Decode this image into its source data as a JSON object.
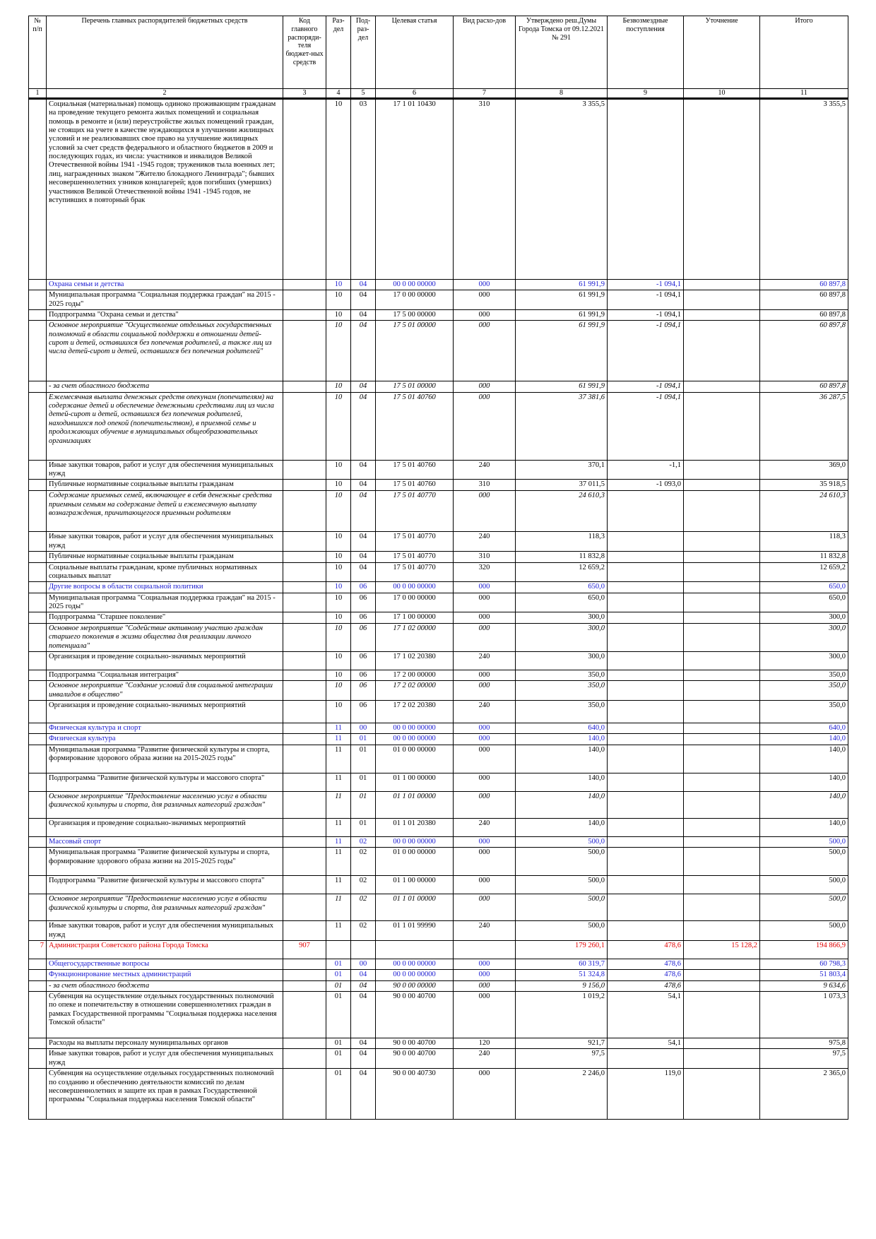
{
  "header": [
    "№ п/п",
    "Перечень главных распорядителей бюджетных средств",
    "Код главного распоряди-теля бюджет-ных средств",
    "Раз-дел",
    "Под-раз-дел",
    "Целевая статья",
    "Вид расхо-дов",
    "Утверждено реш.Думы Города Томска от 09.12.2021 № 291",
    "Безвозмездные поступления",
    "Уточнение",
    "Итого"
  ],
  "col_numbers": [
    "1",
    "2",
    "3",
    "4",
    "5",
    "6",
    "7",
    "8",
    "9",
    "10",
    "11"
  ],
  "rows": [
    {
      "style": "normal",
      "no": "",
      "name": "Социальная (материальная) помощь одиноко проживающим гражданам на проведение текущего ремонта жилых помещений и социальная помощь в ремонте и (или) переустройстве жилых помещений граждан, не стоящих на учете в качестве нуждающихся в улучшении жилищных условий и не реализовавших свое право на улучшение жилищных условий за счет средств федерального и областного бюджетов в 2009 и последующих годах, из числа: участников и инвалидов Великой Отечественной войны 1941 -1945 годов; тружеников тыла военных лет; лиц, награжденных знаком \"Жителю блокадного Ленинграда\"; бывших несовершеннолетних узников концлагерей; вдов погибших (умерших) участников Великой Отечественной войны 1941 -1945 годов, не вступивших в повторный брак",
      "code": "",
      "razdel": "10",
      "podrazdel": "03",
      "target": "17 1 01 10430",
      "vid": "310",
      "approved": "3 355,5",
      "free": "",
      "refine": "",
      "total": "3 355,5"
    },
    {
      "style": "blue",
      "no": "",
      "name": "Охрана семьи и детства",
      "code": "",
      "razdel": "10",
      "podrazdel": "04",
      "target": "00 0 00 00000",
      "vid": "000",
      "approved": "61 991,9",
      "free": "-1 094,1",
      "refine": "",
      "total": "60 897,8"
    },
    {
      "style": "bold",
      "no": "",
      "name": "Муниципальная программа \"Социальная поддержка граждан\" на 2015 - 2025 годы\"",
      "code": "",
      "razdel": "10",
      "podrazdel": "04",
      "target": "17 0 00 00000",
      "vid": "000",
      "approved": "61 991,9",
      "free": "-1 094,1",
      "refine": "",
      "total": "60 897,8"
    },
    {
      "style": "bold",
      "no": "",
      "name": "Подпрограмма \"Охрана семьи и детства\"",
      "code": "",
      "razdel": "10",
      "podrazdel": "04",
      "target": "17 5 00 00000",
      "vid": "000",
      "approved": "61 991,9",
      "free": "-1 094,1",
      "refine": "",
      "total": "60 897,8"
    },
    {
      "style": "bolditalic",
      "no": "",
      "name": "Основное мероприятие \"Осуществление отдельных государственных полномочий в области социальной поддержки в отношении детей-сирот и детей, оставшихся без попечения родителей, а также лиц из числа детей-сирот и детей, оставшихся без попечения родителей\"",
      "code": "",
      "razdel": "10",
      "podrazdel": "04",
      "target": "17 5 01 00000",
      "vid": "000",
      "approved": "61 991,9",
      "free": "-1 094,1",
      "refine": "",
      "total": "60 897,8"
    },
    {
      "style": "italic",
      "no": "",
      "name": "- за счет областного бюджета",
      "code": "",
      "razdel": "10",
      "podrazdel": "04",
      "target": "17 5 01 00000",
      "vid": "000",
      "approved": "61 991,9",
      "free": "-1 094,1",
      "refine": "",
      "total": "60 897,8"
    },
    {
      "style": "italic",
      "no": "",
      "name": "Ежемесячная выплата денежных средств опекунам (попечителям) на содержание детей и обеспечение денежными средствами лиц из числа детей-сирот и детей, оставшихся без попечения родителей, находившихся под опекой (попечительством), в приемной семье и продолжающих обучение в муниципальных общеобразовательных организациях",
      "code": "",
      "razdel": "10",
      "podrazdel": "04",
      "target": "17 5 01 40760",
      "vid": "000",
      "approved": "37 381,6",
      "free": "-1 094,1",
      "refine": "",
      "total": "36 287,5"
    },
    {
      "style": "normal",
      "no": "",
      "name": "Иные закупки товаров, работ и услуг для обеспечения муниципальных нужд",
      "code": "",
      "razdel": "10",
      "podrazdel": "04",
      "target": "17 5 01 40760",
      "vid": "240",
      "approved": "370,1",
      "free": "-1,1",
      "refine": "",
      "total": "369,0"
    },
    {
      "style": "normal",
      "no": "",
      "name": "Публичные нормативные социальные выплаты гражданам",
      "code": "",
      "razdel": "10",
      "podrazdel": "04",
      "target": "17 5 01 40760",
      "vid": "310",
      "approved": "37 011,5",
      "free": "-1 093,0",
      "refine": "",
      "total": "35 918,5"
    },
    {
      "style": "italic",
      "no": "",
      "name": "Содержание приемных семей, включающее в себя денежные средства приемным семьям на содержание детей и ежемесячную выплату вознаграждения, причитающегося приемным родителям",
      "code": "",
      "razdel": "10",
      "podrazdel": "04",
      "target": "17 5 01 40770",
      "vid": "000",
      "approved": "24 610,3",
      "free": "",
      "refine": "",
      "total": "24 610,3"
    },
    {
      "style": "normal",
      "no": "",
      "name": "Иные закупки товаров, работ и услуг для обеспечения муниципальных нужд",
      "code": "",
      "razdel": "10",
      "podrazdel": "04",
      "target": "17 5 01 40770",
      "vid": "240",
      "approved": "118,3",
      "free": "",
      "refine": "",
      "total": "118,3"
    },
    {
      "style": "normal",
      "no": "",
      "name": "Публичные нормативные социальные выплаты гражданам",
      "code": "",
      "razdel": "10",
      "podrazdel": "04",
      "target": "17 5 01 40770",
      "vid": "310",
      "approved": "11 832,8",
      "free": "",
      "refine": "",
      "total": "11 832,8"
    },
    {
      "style": "normal",
      "no": "",
      "name": "Социальные выплаты гражданам, кроме публичных нормативных социальных выплат",
      "code": "",
      "razdel": "10",
      "podrazdel": "04",
      "target": "17 5 01 40770",
      "vid": "320",
      "approved": "12 659,2",
      "free": "",
      "refine": "",
      "total": "12 659,2"
    },
    {
      "style": "blue",
      "no": "",
      "name": "Другие вопросы в области социальной политики",
      "code": "",
      "razdel": "10",
      "podrazdel": "06",
      "target": "00 0 00 00000",
      "vid": "000",
      "approved": "650,0",
      "free": "",
      "refine": "",
      "total": "650,0"
    },
    {
      "style": "bold",
      "no": "",
      "name": "Муниципальная программа \"Социальная поддержка граждан\" на 2015 - 2025 годы\"",
      "code": "",
      "razdel": "10",
      "podrazdel": "06",
      "target": "17 0 00 00000",
      "vid": "000",
      "approved": "650,0",
      "free": "",
      "refine": "",
      "total": "650,0"
    },
    {
      "style": "bold",
      "no": "",
      "name": "Подпрограмма \"Старшее поколение\"",
      "code": "",
      "razdel": "10",
      "podrazdel": "06",
      "target": "17 1 00 00000",
      "vid": "000",
      "approved": "300,0",
      "free": "",
      "refine": "",
      "total": "300,0"
    },
    {
      "style": "bolditalic",
      "no": "",
      "name": "Основное мероприятие \"Содействие активному участию граждан старшего поколения в жизни общества для реализации личного потенциала\"",
      "code": "",
      "razdel": "10",
      "podrazdel": "06",
      "target": "17 1 02 00000",
      "vid": "000",
      "approved": "300,0",
      "free": "",
      "refine": "",
      "total": "300,0"
    },
    {
      "style": "normal",
      "no": "",
      "name": "Организация и проведение социально-значимых мероприятий",
      "code": "",
      "razdel": "10",
      "podrazdel": "06",
      "target": "17 1 02 20380",
      "vid": "240",
      "approved": "300,0",
      "free": "",
      "refine": "",
      "total": "300,0"
    },
    {
      "style": "bold",
      "no": "",
      "name": "Подпрограмма \"Социальная интеграция\"",
      "code": "",
      "razdel": "10",
      "podrazdel": "06",
      "target": "17 2 00 00000",
      "vid": "000",
      "approved": "350,0",
      "free": "",
      "refine": "",
      "total": "350,0"
    },
    {
      "style": "bolditalic",
      "no": "",
      "name": "Основное мероприятие \"Создание условий для социальной интеграции инвалидов в общество\"",
      "code": "",
      "razdel": "10",
      "podrazdel": "06",
      "target": "17 2 02 00000",
      "vid": "000",
      "approved": "350,0",
      "free": "",
      "refine": "",
      "total": "350,0"
    },
    {
      "style": "normal",
      "no": "",
      "name": "Организация и проведение социально-значимых мероприятий",
      "code": "",
      "razdel": "10",
      "podrazdel": "06",
      "target": "17 2 02 20380",
      "vid": "240",
      "approved": "350,0",
      "free": "",
      "refine": "",
      "total": "350,0"
    },
    {
      "style": "bluebig",
      "no": "",
      "name": "Физическая культура и спорт",
      "code": "",
      "razdel": "11",
      "podrazdel": "00",
      "target": "00 0 00 00000",
      "vid": "000",
      "approved": "640,0",
      "free": "",
      "refine": "",
      "total": "640,0"
    },
    {
      "style": "blue",
      "no": "",
      "name": "Физическая культура",
      "code": "",
      "razdel": "11",
      "podrazdel": "01",
      "target": "00 0 00 00000",
      "vid": "000",
      "approved": "140,0",
      "free": "",
      "refine": "",
      "total": "140,0"
    },
    {
      "style": "bold",
      "no": "",
      "name": "Муниципальная программа \"Развитие физической культуры и спорта, формирование здорового образа жизни на 2015-2025 годы\"",
      "code": "",
      "razdel": "11",
      "podrazdel": "01",
      "target": "01 0 00 00000",
      "vid": "000",
      "approved": "140,0",
      "free": "",
      "refine": "",
      "total": "140,0"
    },
    {
      "style": "bold",
      "no": "",
      "name": "Подпрограмма \"Развитие физической культуры и массового спорта\"",
      "code": "",
      "razdel": "11",
      "podrazdel": "01",
      "target": "01 1 00 00000",
      "vid": "000",
      "approved": "140,0",
      "free": "",
      "refine": "",
      "total": "140,0"
    },
    {
      "style": "bolditalic",
      "no": "",
      "name": "Основное мероприятие \"Предоставление населению услуг в области физической культуры и спорта, для различных категорий граждан\"",
      "code": "",
      "razdel": "11",
      "podrazdel": "01",
      "target": "01 1 01 00000",
      "vid": "000",
      "approved": "140,0",
      "free": "",
      "refine": "",
      "total": "140,0"
    },
    {
      "style": "normal",
      "no": "",
      "name": "Организация и проведение социально-значимых мероприятий",
      "code": "",
      "razdel": "11",
      "podrazdel": "01",
      "target": "01 1 01 20380",
      "vid": "240",
      "approved": "140,0",
      "free": "",
      "refine": "",
      "total": "140,0"
    },
    {
      "style": "blue",
      "no": "",
      "name": "Массовый спорт",
      "code": "",
      "razdel": "11",
      "podrazdel": "02",
      "target": "00 0 00 00000",
      "vid": "000",
      "approved": "500,0",
      "free": "",
      "refine": "",
      "total": "500,0"
    },
    {
      "style": "bold",
      "no": "",
      "name": "Муниципальная программа \"Развитие физической культуры и спорта, формирование здорового образа жизни на 2015-2025 годы\"",
      "code": "",
      "razdel": "11",
      "podrazdel": "02",
      "target": "01 0 00 00000",
      "vid": "000",
      "approved": "500,0",
      "free": "",
      "refine": "",
      "total": "500,0"
    },
    {
      "style": "bold",
      "no": "",
      "name": "Подпрограмма \"Развитие физической культуры и массового спорта\"",
      "code": "",
      "razdel": "11",
      "podrazdel": "02",
      "target": "01 1 00 00000",
      "vid": "000",
      "approved": "500,0",
      "free": "",
      "refine": "",
      "total": "500,0"
    },
    {
      "style": "bolditalic",
      "no": "",
      "name": "Основное мероприятие \"Предоставление населению услуг в области физической культуры и спорта, для различных категорий граждан\"",
      "code": "",
      "razdel": "11",
      "podrazdel": "02",
      "target": "01 1 01 00000",
      "vid": "000",
      "approved": "500,0",
      "free": "",
      "refine": "",
      "total": "500,0"
    },
    {
      "style": "normal",
      "no": "",
      "name": "Иные закупки товаров, работ и услуг для обеспечения муниципальных нужд",
      "code": "",
      "razdel": "11",
      "podrazdel": "02",
      "target": "01 1 01 99990",
      "vid": "240",
      "approved": "500,0",
      "free": "",
      "refine": "",
      "total": "500,0"
    },
    {
      "style": "red",
      "no": "7",
      "name": "Администрация Советского района Города Томска",
      "code": "907",
      "razdel": "",
      "podrazdel": "",
      "target": "",
      "vid": "",
      "approved": "179 260,1",
      "free": "478,6",
      "refine": "15 128,2",
      "total": "194 866,9"
    },
    {
      "style": "bluebig",
      "no": "",
      "name": "Общегосударственные вопросы",
      "code": "",
      "razdel": "01",
      "podrazdel": "00",
      "target": "00 0 00 00000",
      "vid": "000",
      "approved": "60 319,7",
      "free": "478,6",
      "refine": "",
      "total": "60 798,3"
    },
    {
      "style": "blue",
      "no": "",
      "name": "Функционирование местных администраций",
      "code": "",
      "razdel": "01",
      "podrazdel": "04",
      "target": "00 0 00 00000",
      "vid": "000",
      "approved": "51 324,8",
      "free": "478,6",
      "refine": "",
      "total": "51 803,4"
    },
    {
      "style": "italic",
      "no": "",
      "name": "- за счет областного бюджета",
      "code": "",
      "razdel": "01",
      "podrazdel": "04",
      "target": "90 0 00 00000",
      "vid": "000",
      "approved": "9 156,0",
      "free": "478,6",
      "refine": "",
      "total": "9 634,6"
    },
    {
      "style": "normal",
      "no": "",
      "name": "Субвенция на осуществление отдельных государственных полномочий по опеке и попечительству в отношении совершеннолетних граждан в рамках Государственной программы \"Социальная поддержка населения Томской области\"",
      "code": "",
      "razdel": "01",
      "podrazdel": "04",
      "target": "90 0 00 40700",
      "vid": "000",
      "approved": "1 019,2",
      "free": "54,1",
      "refine": "",
      "total": "1 073,3"
    },
    {
      "style": "normal",
      "no": "",
      "name": "Расходы на выплаты персоналу муниципальных органов",
      "code": "",
      "razdel": "01",
      "podrazdel": "04",
      "target": "90 0 00 40700",
      "vid": "120",
      "approved": "921,7",
      "free": "54,1",
      "refine": "",
      "total": "975,8"
    },
    {
      "style": "normal",
      "no": "",
      "name": "Иные закупки товаров, работ и услуг для обеспечения муниципальных нужд",
      "code": "",
      "razdel": "01",
      "podrazdel": "04",
      "target": "90 0 00 40700",
      "vid": "240",
      "approved": "97,5",
      "free": "",
      "refine": "",
      "total": "97,5"
    },
    {
      "style": "normal",
      "no": "",
      "name": "Субвенция на осуществление отдельных государственных полномочий по созданию и обеспечению деятельности комиссий по делам несовершеннолетних и защите их прав в рамках Государственной программы \"Социальная поддержка населения Томской области\"",
      "code": "",
      "razdel": "01",
      "podrazdel": "04",
      "target": "90 0 00 40730",
      "vid": "000",
      "approved": "2 246,0",
      "free": "119,0",
      "refine": "",
      "total": "2 365,0"
    }
  ]
}
